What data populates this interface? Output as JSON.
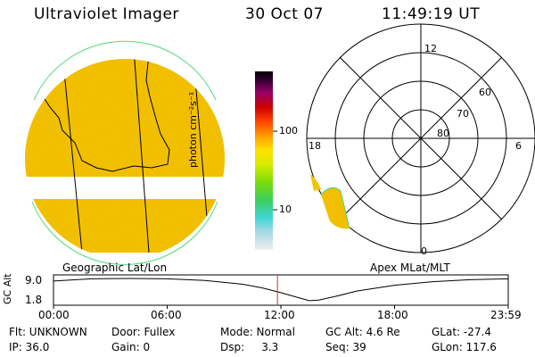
{
  "header": {
    "instrument": "Ultraviolet Imager",
    "date": "30 Oct 07",
    "time": "11:49:19 UT"
  },
  "left_panel": {
    "caption": "Geographic Lat/Lon"
  },
  "colorbar": {
    "label": "photon cm⁻²s⁻¹",
    "ticks": [
      {
        "value": 100,
        "label": "100"
      },
      {
        "value": 10,
        "label": "10"
      }
    ],
    "scale": "log",
    "colors": [
      "#eeeeee",
      "#a8d8e6",
      "#3fd6d6",
      "#3ccf5a",
      "#7ddc0a",
      "#d9ec00",
      "#ffe000",
      "#ffa500",
      "#ff4400",
      "#cc0000",
      "#990066",
      "#330033",
      "#000000"
    ]
  },
  "polar_plot": {
    "caption": "Apex MLat/MLT",
    "mlt_labels": {
      "top": "12",
      "bottom": "0",
      "left": "18",
      "right": "6"
    },
    "lat_labels": [
      "60",
      "70",
      "80"
    ]
  },
  "altitude_strip": {
    "ylabel": "GC Alt",
    "yticks": [
      "9.0",
      "1.8"
    ],
    "xticks": [
      "00:00",
      "06:00",
      "12:00",
      "18:00",
      "23:59"
    ],
    "current_time_marker_hours": 11.82,
    "chart_data": {
      "type": "line",
      "x_unit": "hours UT",
      "y_unit": "Re",
      "xlim": [
        0,
        24
      ],
      "ylim": [
        1.8,
        9.0
      ],
      "x": [
        0,
        2,
        4,
        6,
        8,
        10,
        11,
        12,
        13,
        13.5,
        14,
        15,
        16,
        18,
        20,
        22,
        24
      ],
      "y": [
        8.2,
        8.9,
        9.0,
        8.9,
        8.4,
        7.2,
        6.1,
        4.6,
        2.9,
        2.1,
        2.3,
        3.6,
        5.1,
        6.9,
        8.0,
        8.6,
        8.9
      ]
    }
  },
  "info": [
    [
      {
        "text": "Flt: UNKNOWN"
      },
      {
        "text": "Door: Fullex"
      },
      {
        "text": "Mode: Normal"
      },
      {
        "text": "GC Alt: 4.6 Re"
      },
      {
        "text": "GLat: -27.4"
      }
    ],
    [
      {
        "text": "IP: 36.0"
      },
      {
        "text": "Gain:  0"
      },
      {
        "text": "Dsp:     3.3"
      },
      {
        "text": "Seq: 39"
      },
      {
        "text": "GLon: 117.6"
      }
    ]
  ]
}
